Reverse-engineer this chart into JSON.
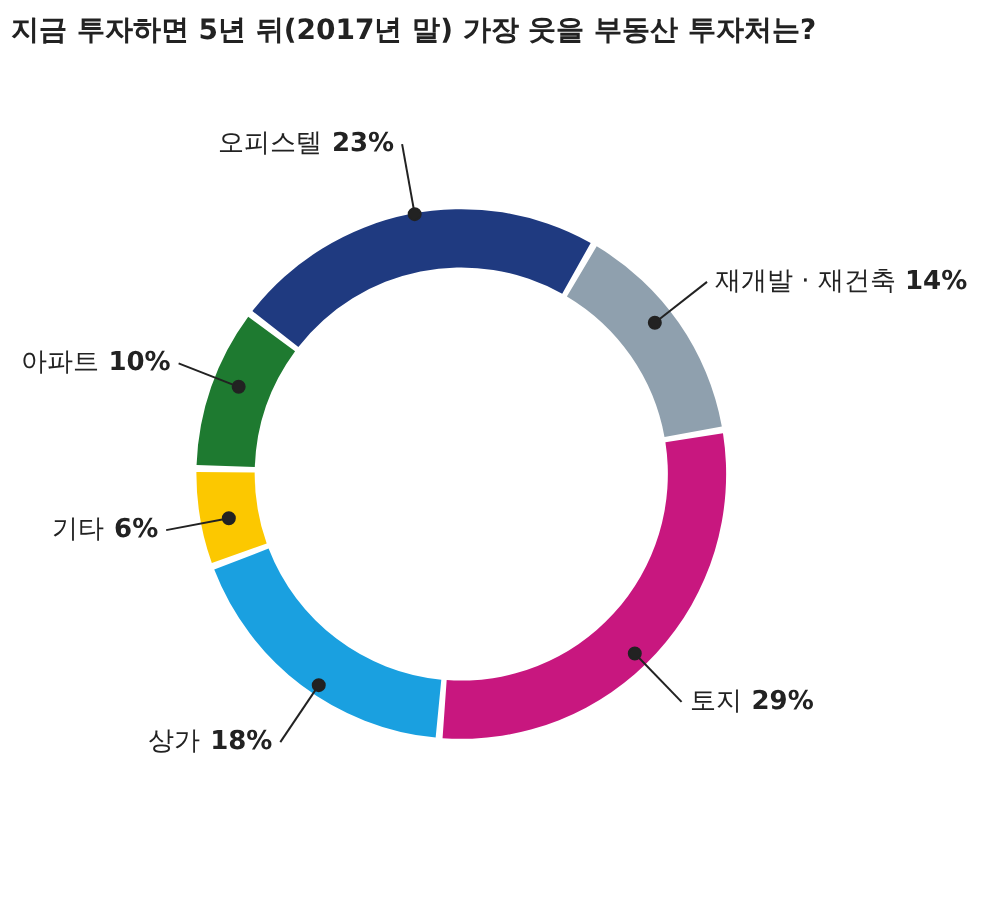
{
  "chart_data": {
    "type": "donut",
    "title": "지금 투자하면 5년 뒤(2017년 말) 가장 웃을 부동산 투자처는?",
    "categories": [
      "재개발 · 재건축",
      "토지",
      "상가",
      "기타",
      "아파트",
      "오피스텔"
    ],
    "values": [
      14,
      29,
      18,
      6,
      10,
      23
    ],
    "colors": [
      "#8fa0ae",
      "#c8177f",
      "#1aa0e0",
      "#fcc800",
      "#1e7a30",
      "#1f3a80"
    ],
    "value_labels": [
      "14%",
      "29%",
      "18%",
      "6%",
      "10%",
      "23%"
    ]
  }
}
